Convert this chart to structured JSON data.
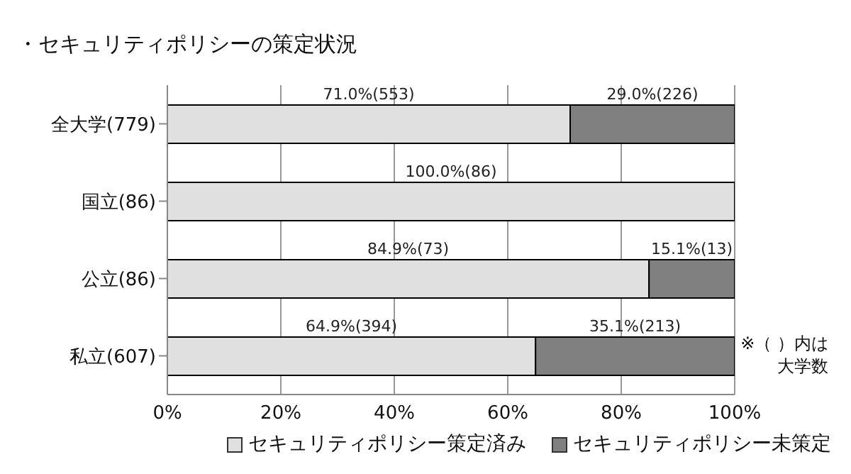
{
  "chart_data": {
    "type": "bar",
    "orientation": "horizontal",
    "stacked": true,
    "title": "・セキュリティポリシーの策定状況",
    "categories": [
      "全大学(779)",
      "国立(86)",
      "公立(86)",
      "私立(607)"
    ],
    "series": [
      {
        "name": "セキュリティポリシー策定済み",
        "color": "#e0e0e0",
        "values": [
          71.0,
          100.0,
          84.9,
          64.9
        ],
        "value_labels": [
          "71.0%(553)",
          "100.0%(86)",
          "84.9%(73)",
          "64.9%(394)"
        ]
      },
      {
        "name": "セキュリティポリシー未策定",
        "color": "#808080",
        "values": [
          29.0,
          0,
          15.1,
          35.1
        ],
        "value_labels": [
          "29.0%(226)",
          null,
          "15.1%(13)",
          "35.1%(213)"
        ]
      }
    ],
    "xlim": [
      0,
      100
    ],
    "xticks": [
      {
        "value": 0,
        "label": "0%"
      },
      {
        "value": 20,
        "label": "20%"
      },
      {
        "value": 40,
        "label": "40%"
      },
      {
        "value": 60,
        "label": "60%"
      },
      {
        "value": 80,
        "label": "80%"
      },
      {
        "value": 100,
        "label": "100%"
      }
    ],
    "grid": "x",
    "legend": "bottom",
    "annotations": [
      "※（ ）内は大学数"
    ]
  }
}
